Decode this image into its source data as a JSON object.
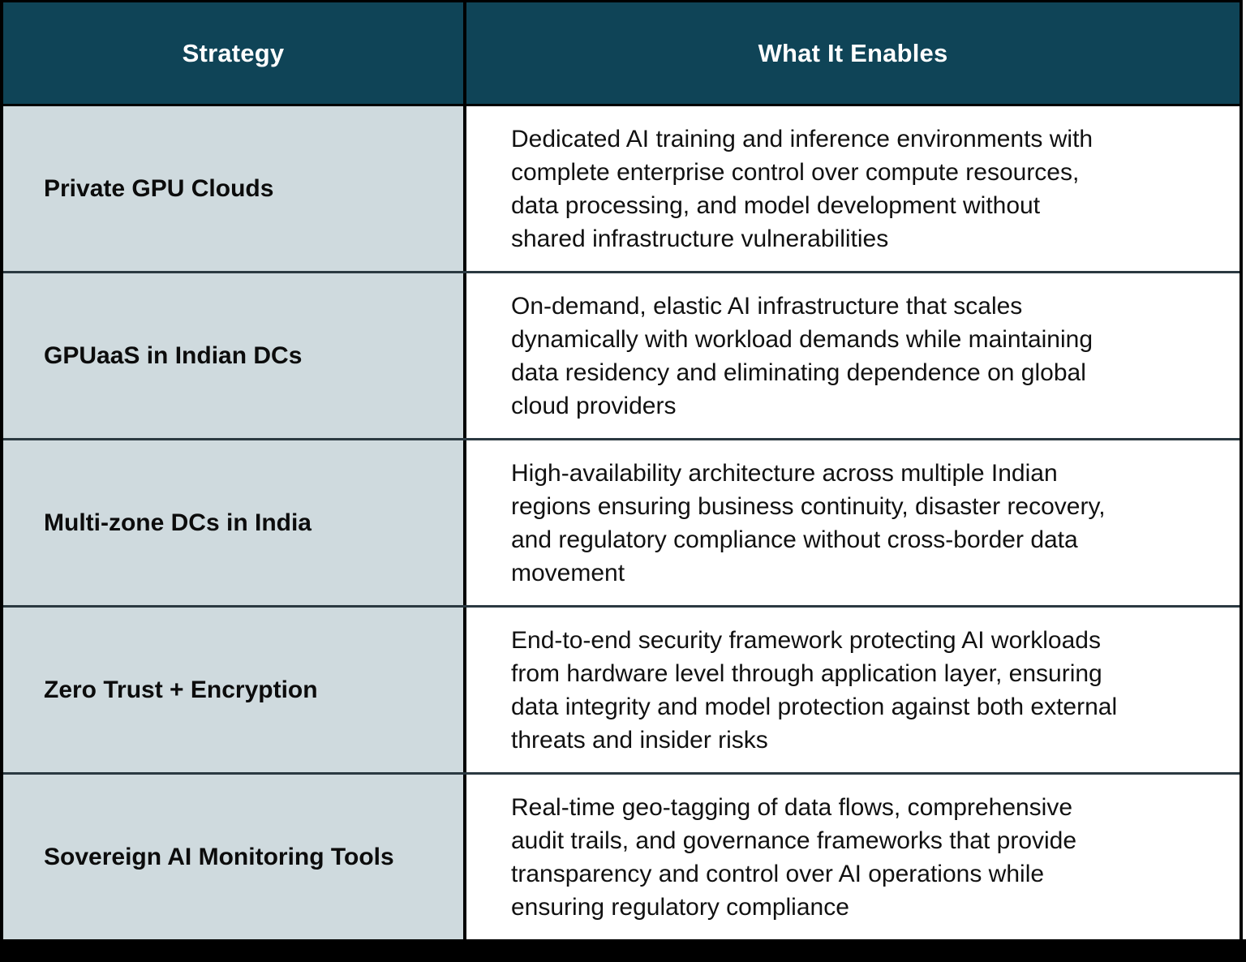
{
  "table": {
    "columns": [
      {
        "label": "Strategy"
      },
      {
        "label": "What It Enables"
      }
    ],
    "rows": [
      {
        "strategy": "Private GPU Clouds",
        "enables": "Dedicated AI training and inference environments with\ncomplete enterprise control over compute resources,\ndata processing, and model development without\nshared infrastructure vulnerabilities"
      },
      {
        "strategy": "GPUaaS in Indian DCs",
        "enables": "On-demand, elastic AI infrastructure that scales\ndynamically with workload demands while maintaining\ndata residency and eliminating dependence on global\ncloud providers"
      },
      {
        "strategy": "Multi-zone DCs in India",
        "enables": "High-availability architecture across multiple Indian\nregions ensuring business continuity, disaster recovery,\nand regulatory compliance without cross-border data\nmovement"
      },
      {
        "strategy": "Zero Trust + Encryption",
        "enables": "End-to-end security framework protecting AI workloads\nfrom hardware level through application layer, ensuring\ndata integrity and model protection against both external\nthreats and insider risks"
      },
      {
        "strategy": "Sovereign AI Monitoring Tools",
        "enables": "Real-time geo-tagging of data flows, comprehensive\naudit trails, and governance frameworks that provide\ntransparency and control over AI operations while\nensuring regulatory compliance"
      }
    ]
  },
  "colors": {
    "header_bg": "#0f4457",
    "header_text": "#ffffff",
    "strategy_cell_bg": "#cfdade",
    "enables_cell_bg": "#ffffff",
    "row_divider": "#2b3941",
    "outer_border": "#000000",
    "body_text": "#111111"
  }
}
